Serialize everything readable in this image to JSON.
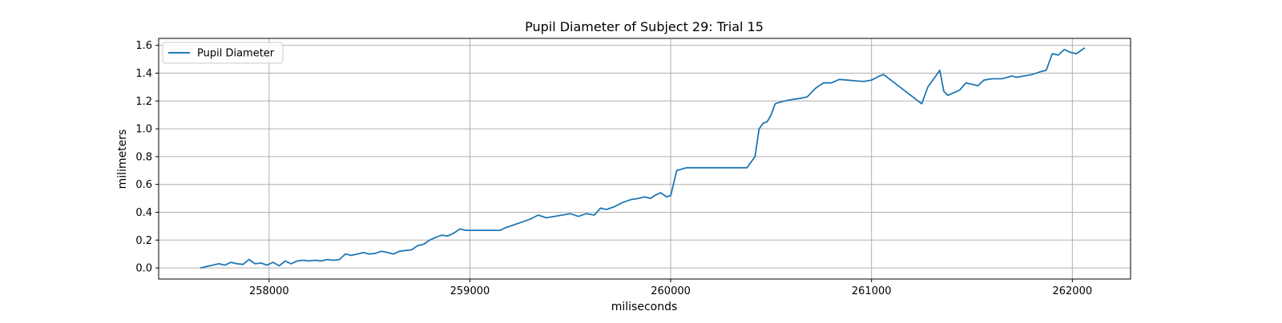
{
  "chart_data": {
    "type": "line",
    "title": "Pupil Diameter of Subject 29: Trial 15",
    "xlabel": "miliseconds",
    "ylabel": "milimeters",
    "xlim": [
      257450,
      262290
    ],
    "ylim": [
      -0.08,
      1.65
    ],
    "xticks": [
      258000,
      259000,
      260000,
      261000,
      262000
    ],
    "xtick_labels": [
      "258000",
      "259000",
      "260000",
      "261000",
      "262000"
    ],
    "yticks": [
      0.0,
      0.2,
      0.4,
      0.6,
      0.8,
      1.0,
      1.2,
      1.4,
      1.6
    ],
    "ytick_labels": [
      "0.0",
      "0.2",
      "0.4",
      "0.6",
      "0.8",
      "1.0",
      "1.2",
      "1.4",
      "1.6"
    ],
    "grid": true,
    "legend": {
      "position": "top-left",
      "entries": [
        "Pupil Diameter"
      ]
    },
    "series": [
      {
        "name": "Pupil Diameter",
        "color": "#1f77b4",
        "x": [
          257660,
          257690,
          257720,
          257750,
          257780,
          257810,
          257840,
          257870,
          257900,
          257930,
          257960,
          257990,
          258020,
          258050,
          258080,
          258110,
          258140,
          258170,
          258200,
          258230,
          258260,
          258290,
          258320,
          258350,
          258380,
          258410,
          258440,
          258470,
          258500,
          258530,
          258560,
          258590,
          258620,
          258650,
          258680,
          258710,
          258740,
          258770,
          258800,
          258830,
          258860,
          258890,
          258920,
          258950,
          258980,
          259000,
          259100,
          259150,
          259180,
          259220,
          259260,
          259300,
          259340,
          259380,
          259420,
          259460,
          259500,
          259540,
          259580,
          259620,
          259650,
          259680,
          259720,
          259760,
          259800,
          259840,
          259870,
          259900,
          259920,
          259950,
          259980,
          260000,
          260030,
          260080,
          260150,
          260250,
          260380,
          260400,
          260420,
          260440,
          260460,
          260480,
          260500,
          260520,
          260540,
          260570,
          260600,
          260650,
          260680,
          260720,
          260760,
          260800,
          260840,
          260880,
          260920,
          260960,
          261000,
          261040,
          261060,
          261250,
          261280,
          261320,
          261340,
          261360,
          261380,
          261410,
          261440,
          261470,
          261500,
          261530,
          261560,
          261600,
          261650,
          261700,
          261720,
          261760,
          261800,
          261840,
          261870,
          261900,
          261930,
          261960,
          261990,
          262020,
          262050,
          262060
        ],
        "y": [
          0.0,
          0.01,
          0.02,
          0.03,
          0.02,
          0.04,
          0.03,
          0.025,
          0.06,
          0.03,
          0.035,
          0.02,
          0.04,
          0.015,
          0.05,
          0.03,
          0.05,
          0.055,
          0.05,
          0.055,
          0.05,
          0.06,
          0.055,
          0.06,
          0.1,
          0.09,
          0.1,
          0.11,
          0.1,
          0.105,
          0.12,
          0.11,
          0.1,
          0.12,
          0.125,
          0.13,
          0.16,
          0.17,
          0.2,
          0.22,
          0.235,
          0.23,
          0.25,
          0.28,
          0.27,
          0.27,
          0.27,
          0.27,
          0.29,
          0.31,
          0.33,
          0.35,
          0.38,
          0.36,
          0.37,
          0.38,
          0.39,
          0.37,
          0.39,
          0.38,
          0.43,
          0.42,
          0.44,
          0.47,
          0.49,
          0.5,
          0.51,
          0.5,
          0.52,
          0.54,
          0.51,
          0.52,
          0.7,
          0.72,
          0.72,
          0.72,
          0.72,
          0.76,
          0.8,
          1.0,
          1.04,
          1.05,
          1.1,
          1.18,
          1.19,
          1.2,
          1.21,
          1.22,
          1.23,
          1.29,
          1.33,
          1.33,
          1.355,
          1.35,
          1.345,
          1.34,
          1.35,
          1.38,
          1.39,
          1.18,
          1.3,
          1.38,
          1.42,
          1.27,
          1.24,
          1.26,
          1.28,
          1.33,
          1.32,
          1.31,
          1.35,
          1.36,
          1.36,
          1.38,
          1.37,
          1.38,
          1.39,
          1.41,
          1.42,
          1.54,
          1.53,
          1.57,
          1.55,
          1.54,
          1.57,
          1.58
        ]
      }
    ]
  }
}
